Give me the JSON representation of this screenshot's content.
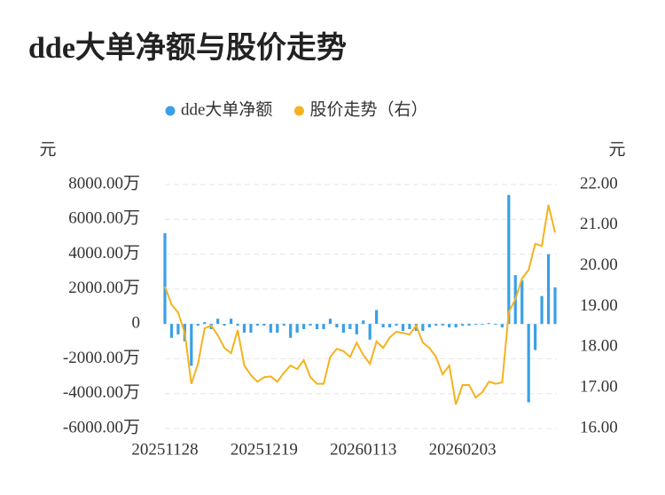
{
  "chart_data": {
    "type": "bar",
    "title": "dde大单净额与股价走势",
    "y_label": "元",
    "y2_label": "元",
    "categories": [
      "20251128",
      null,
      null,
      null,
      null,
      null,
      null,
      null,
      null,
      null,
      null,
      null,
      null,
      null,
      null,
      "20251219",
      null,
      null,
      null,
      null,
      null,
      null,
      null,
      null,
      null,
      null,
      null,
      null,
      null,
      null,
      "20260113",
      null,
      null,
      null,
      null,
      null,
      null,
      null,
      null,
      null,
      null,
      null,
      null,
      null,
      null,
      "20260203",
      null,
      null,
      null,
      null,
      null,
      null,
      null,
      null,
      null,
      null,
      null,
      null,
      null,
      null
    ],
    "series": [
      {
        "name": "dde大单净额",
        "type": "bar",
        "color": "#3aa0e6",
        "values": [
          5200,
          -800,
          -600,
          -1000,
          -2400,
          -100,
          100,
          -300,
          300,
          -100,
          300,
          -100,
          -500,
          -500,
          -100,
          -100,
          -500,
          -500,
          -100,
          -800,
          -500,
          -300,
          -100,
          -300,
          -300,
          300,
          -200,
          -500,
          -300,
          -600,
          200,
          -900,
          800,
          -200,
          -200,
          -100,
          -400,
          -300,
          -400,
          -400,
          -200,
          -100,
          -100,
          -200,
          -200,
          -100,
          -100,
          -50,
          -50,
          50,
          -50,
          -200,
          7400,
          2800,
          2500,
          -4500,
          -1500,
          1600,
          4000,
          2100
        ]
      },
      {
        "name": "股价走势（右）",
        "type": "line",
        "axis": "y2",
        "color": "#f5b21f",
        "values": [
          19.49,
          19.05,
          18.85,
          18.35,
          17.1,
          17.59,
          18.46,
          18.53,
          18.29,
          17.98,
          17.85,
          18.42,
          17.55,
          17.31,
          17.15,
          17.26,
          17.28,
          17.15,
          17.37,
          17.55,
          17.46,
          17.68,
          17.26,
          17.1,
          17.1,
          17.76,
          17.96,
          17.9,
          17.76,
          18.11,
          17.81,
          17.59,
          18.14,
          17.98,
          18.24,
          18.38,
          18.35,
          18.31,
          18.53,
          18.11,
          17.98,
          17.76,
          17.33,
          17.55,
          16.59,
          17.07,
          17.07,
          16.76,
          16.89,
          17.15,
          17.1,
          17.13,
          18.86,
          19.18,
          19.69,
          19.9,
          20.54,
          20.49,
          21.5,
          20.82
        ]
      }
    ],
    "ylim": [
      -6000,
      8000
    ],
    "yticks": [
      {
        "value": -6000,
        "label": "-6000.00万"
      },
      {
        "value": -4000,
        "label": "-4000.00万"
      },
      {
        "value": -2000,
        "label": "-2000.00万"
      },
      0,
      {
        "value": 2000,
        "label": "2000.00万"
      },
      {
        "value": 4000,
        "label": "4000.00万"
      },
      {
        "value": 6000,
        "label": "6000.00万"
      },
      {
        "value": 8000,
        "label": "8000.00万"
      }
    ],
    "y2lim": [
      16,
      22
    ],
    "y2ticks": [
      {
        "value": 16,
        "label": "16.00"
      },
      {
        "value": 17,
        "label": "17.00"
      },
      {
        "value": 18,
        "label": "18.00"
      },
      {
        "value": 19,
        "label": "19.00"
      },
      {
        "value": 20,
        "label": "20.00"
      },
      {
        "value": 21,
        "label": "21.00"
      },
      {
        "value": 22,
        "label": "22.00"
      }
    ],
    "grid": true,
    "legend": "top"
  }
}
